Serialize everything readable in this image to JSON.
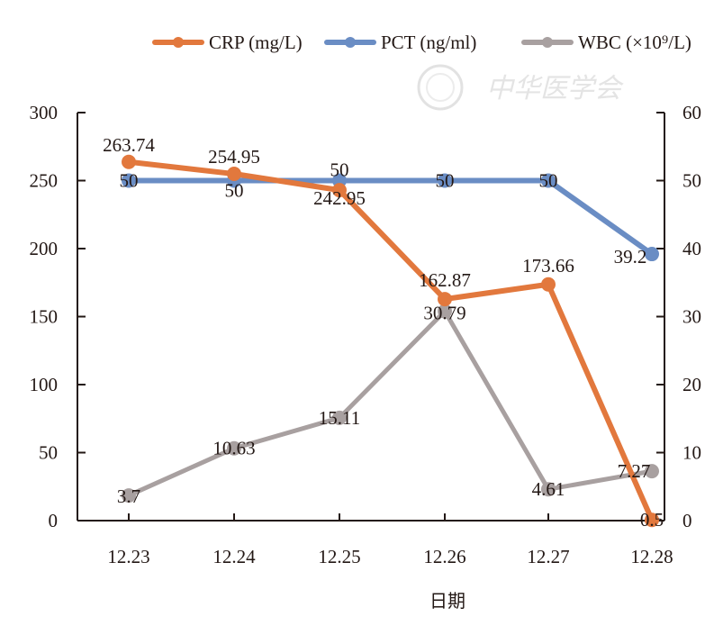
{
  "chart_data": {
    "type": "line",
    "title": "",
    "xlabel": "日期",
    "ylabel_left": "",
    "ylabel_right": "",
    "categories": [
      "12.23",
      "12.24",
      "12.25",
      "12.26",
      "12.27",
      "12.28"
    ],
    "y_left": {
      "range": [
        0,
        300
      ],
      "ticks": [
        0,
        50,
        100,
        150,
        200,
        250,
        300
      ]
    },
    "y_right": {
      "range": [
        0,
        60
      ],
      "ticks": [
        0,
        10,
        20,
        30,
        40,
        50,
        60
      ]
    },
    "grid": false,
    "legend_position": "top-right",
    "series": [
      {
        "name": "CRP (mg/L)",
        "axis": "left",
        "color": "#E2783D",
        "values": [
          263.74,
          254.95,
          242.95,
          162.87,
          173.66,
          0.5
        ],
        "labels": [
          "263.74",
          "254.95",
          "242.95",
          "162.87",
          "173.66",
          "0.5"
        ]
      },
      {
        "name": "PCT (ng/ml)",
        "axis": "right",
        "color": "#6A8DC4",
        "values": [
          50,
          50,
          50,
          50,
          50,
          39.2
        ],
        "labels": [
          "50",
          "50",
          "50",
          "50",
          "50",
          "39.2"
        ]
      },
      {
        "name": "WBC (×10⁹/L)",
        "axis": "right",
        "color": "#A8A0A0",
        "values": [
          3.7,
          10.63,
          15.11,
          30.79,
          4.61,
          7.27
        ],
        "labels": [
          "3.7",
          "10.63",
          "15.11",
          "30.79",
          "4.61",
          "7.27"
        ]
      }
    ]
  },
  "watermark": {
    "text": "中华医学会"
  }
}
